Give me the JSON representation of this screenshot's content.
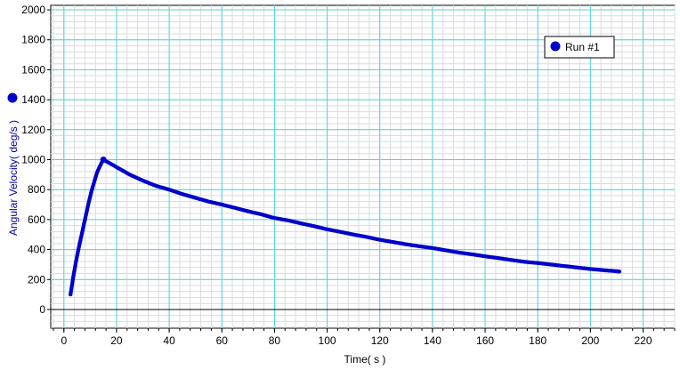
{
  "chart_data": {
    "type": "scatter",
    "xlabel": "Time( s )",
    "ylabel": "Angular Velocity( deg/s )",
    "xlim": [
      -5,
      232
    ],
    "ylim": [
      -125,
      2030
    ],
    "x_ticks": [
      0,
      20,
      40,
      60,
      80,
      100,
      120,
      140,
      160,
      180,
      200,
      220
    ],
    "y_ticks": [
      0,
      200,
      400,
      600,
      800,
      1000,
      1200,
      1400,
      1600,
      1800,
      2000
    ],
    "grid": true,
    "minor_grid": true,
    "legend": "top-right",
    "colors": {
      "series": "#0000cc",
      "major_grid": "#4fd6d6",
      "minor_grid": "#d9dce0",
      "axis_title": "#0000aa"
    },
    "series": [
      {
        "name": "Run #1",
        "points": [
          [
            2.5,
            100
          ],
          [
            3.5,
            210
          ],
          [
            4.5,
            310
          ],
          [
            5.5,
            400
          ],
          [
            6.5,
            480
          ],
          [
            7.5,
            560
          ],
          [
            8.5,
            640
          ],
          [
            9.5,
            720
          ],
          [
            10.5,
            790
          ],
          [
            11.5,
            850
          ],
          [
            12.5,
            910
          ],
          [
            13.5,
            950
          ],
          [
            14.5,
            985
          ],
          [
            15.0,
            1000
          ],
          [
            20,
            950
          ],
          [
            25,
            900
          ],
          [
            30,
            860
          ],
          [
            35,
            825
          ],
          [
            40,
            800
          ],
          [
            45,
            770
          ],
          [
            50,
            745
          ],
          [
            55,
            720
          ],
          [
            60,
            700
          ],
          [
            65,
            678
          ],
          [
            70,
            655
          ],
          [
            75,
            635
          ],
          [
            80,
            610
          ],
          [
            85,
            595
          ],
          [
            90,
            575
          ],
          [
            95,
            556
          ],
          [
            100,
            535
          ],
          [
            105,
            518
          ],
          [
            110,
            500
          ],
          [
            115,
            484
          ],
          [
            120,
            465
          ],
          [
            125,
            450
          ],
          [
            130,
            435
          ],
          [
            135,
            422
          ],
          [
            140,
            410
          ],
          [
            145,
            395
          ],
          [
            150,
            380
          ],
          [
            155,
            368
          ],
          [
            160,
            355
          ],
          [
            165,
            343
          ],
          [
            170,
            330
          ],
          [
            175,
            318
          ],
          [
            180,
            310
          ],
          [
            185,
            300
          ],
          [
            190,
            290
          ],
          [
            195,
            280
          ],
          [
            200,
            270
          ],
          [
            205,
            262
          ],
          [
            210,
            255
          ],
          [
            211,
            253
          ]
        ]
      }
    ]
  }
}
